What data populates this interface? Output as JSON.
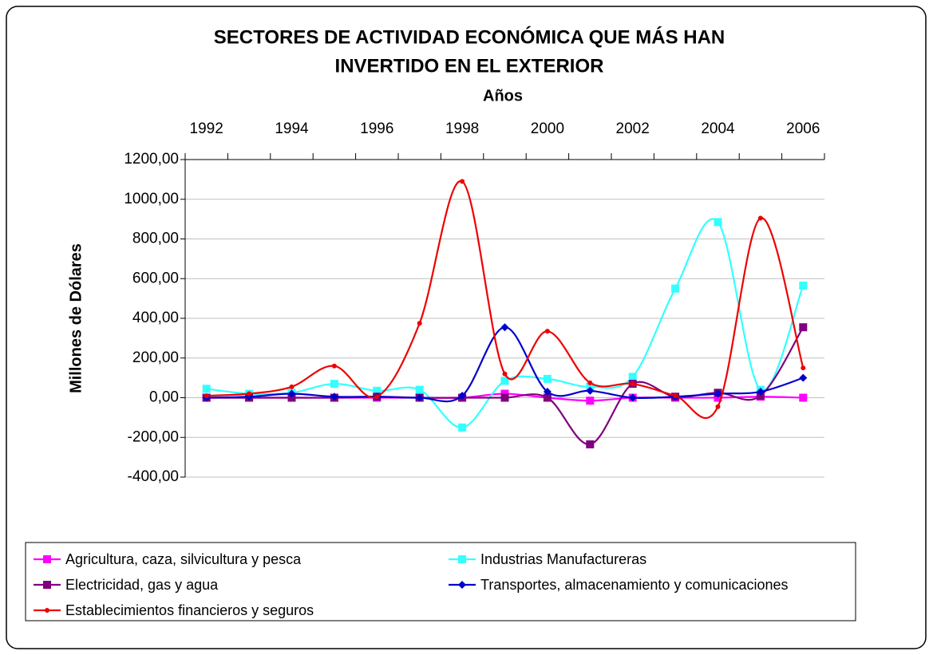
{
  "chart_data": {
    "type": "line",
    "title": [
      "SECTORES DE ACTIVIDAD ECONÓMICA QUE MÁS HAN",
      "INVERTIDO EN EL EXTERIOR"
    ],
    "x_label": "Años",
    "y_label": "Millones de Dólares",
    "categories": [
      "1992",
      null,
      "1994",
      null,
      "1996",
      null,
      "1998",
      null,
      "2000",
      null,
      "2002",
      null,
      "2004",
      null,
      "2006"
    ],
    "ylim": [
      -400,
      1200
    ],
    "yticks": [
      {
        "value": -400,
        "label": "-400,00"
      },
      {
        "value": -200,
        "label": "-200,00"
      },
      {
        "value": 0,
        "label": "0,00"
      },
      {
        "value": 200,
        "label": "200,00"
      },
      {
        "value": 400,
        "label": "400,00"
      },
      {
        "value": 600,
        "label": "600,00"
      },
      {
        "value": 800,
        "label": "800,00"
      },
      {
        "value": 1000,
        "label": "1000,00"
      },
      {
        "value": 1200,
        "label": "1200,00"
      }
    ],
    "grid": true,
    "smooth": true,
    "legend": "bottom",
    "series": [
      {
        "name": "Agricultura, caza, silvicultura y pesca",
        "color": "#ff00ff",
        "marker": "square",
        "values": [
          0,
          0,
          0,
          0,
          0,
          0,
          0,
          20,
          0,
          -15,
          0,
          0,
          0,
          5,
          0
        ]
      },
      {
        "name": "Industrias Manufactureras",
        "color": "#33ffff",
        "marker": "square",
        "values": [
          45,
          20,
          25,
          70,
          35,
          40,
          -150,
          85,
          95,
          55,
          105,
          550,
          885,
          40,
          565
        ]
      },
      {
        "name": "Electricidad, gas y agua",
        "color": "#800080",
        "marker": "square",
        "values": [
          0,
          0,
          0,
          0,
          5,
          0,
          0,
          0,
          0,
          -235,
          70,
          5,
          25,
          10,
          355
        ]
      },
      {
        "name": "Transportes, almacenamiento y comunicaciones",
        "color": "#0000cc",
        "marker": "diamond",
        "values": [
          0,
          5,
          20,
          5,
          5,
          0,
          10,
          355,
          30,
          35,
          0,
          5,
          20,
          30,
          100
        ]
      },
      {
        "name": "Establecimientos financieros y seguros",
        "color": "#ee0000",
        "marker": "circle",
        "values": [
          10,
          20,
          55,
          160,
          5,
          375,
          1090,
          120,
          335,
          75,
          70,
          10,
          -45,
          905,
          150
        ]
      }
    ]
  }
}
